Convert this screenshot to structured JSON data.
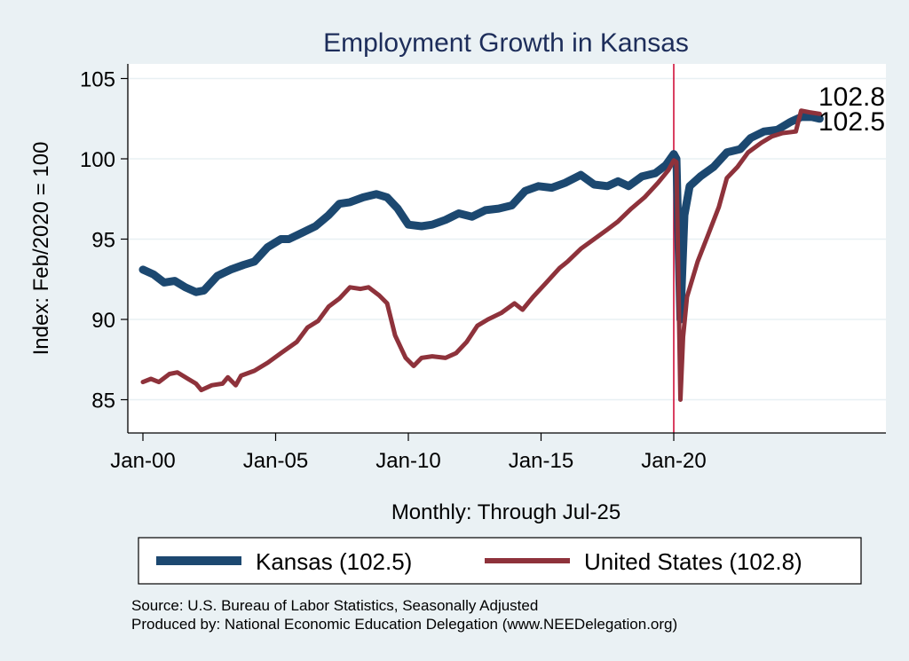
{
  "chart_data": {
    "type": "line",
    "title": "Employment Growth in Kansas",
    "xlabel": "Monthly: Through Jul-25",
    "ylabel": "Index: Feb/2020 = 100",
    "ylim": [
      83,
      106
    ],
    "xlim": [
      1999.5,
      2028.0
    ],
    "y_ticks": [
      85,
      90,
      95,
      100,
      105
    ],
    "x_ticks": [
      {
        "value": 2000,
        "label": "Jan-00"
      },
      {
        "value": 2005,
        "label": "Jan-05"
      },
      {
        "value": 2010,
        "label": "Jan-10"
      },
      {
        "value": 2015,
        "label": "Jan-15"
      },
      {
        "value": 2020,
        "label": "Jan-20"
      }
    ],
    "grid": true,
    "reference_line": {
      "x": 2020.0,
      "color": "#d0103a"
    },
    "legend": {
      "placement": "bottom",
      "entries": [
        "Kansas (102.5)",
        "United States (102.8)"
      ]
    },
    "series": [
      {
        "name": "Kansas",
        "color": "#1c4870",
        "end_label": "102.5",
        "x": [
          2000.0,
          2000.4,
          2000.8,
          2001.2,
          2001.6,
          2002.0,
          2002.3,
          2002.8,
          2003.3,
          2003.8,
          2004.2,
          2004.7,
          2005.2,
          2005.5,
          2006.0,
          2006.5,
          2007.0,
          2007.4,
          2007.8,
          2008.3,
          2008.8,
          2009.2,
          2009.6,
          2010.0,
          2010.5,
          2010.9,
          2011.4,
          2011.9,
          2012.4,
          2012.9,
          2013.4,
          2013.9,
          2014.4,
          2014.9,
          2015.4,
          2015.9,
          2016.5,
          2017.0,
          2017.5,
          2017.9,
          2018.3,
          2018.8,
          2019.3,
          2019.7,
          2020.0,
          2020.1,
          2020.25,
          2020.4,
          2020.6,
          2021.0,
          2021.5,
          2022.0,
          2022.5,
          2022.9,
          2023.4,
          2023.9,
          2024.4,
          2024.8,
          2025.2,
          2025.5
        ],
        "values": [
          93.1,
          92.8,
          92.3,
          92.4,
          92.0,
          91.7,
          91.8,
          92.7,
          93.1,
          93.4,
          93.6,
          94.5,
          95.0,
          95.0,
          95.4,
          95.8,
          96.5,
          97.2,
          97.3,
          97.6,
          97.8,
          97.6,
          96.9,
          95.9,
          95.8,
          95.9,
          96.2,
          96.6,
          96.4,
          96.8,
          96.9,
          97.1,
          98.0,
          98.3,
          98.2,
          98.5,
          99.0,
          98.4,
          98.3,
          98.6,
          98.3,
          98.9,
          99.1,
          99.6,
          100.3,
          100.0,
          90.0,
          96.5,
          98.3,
          98.9,
          99.5,
          100.4,
          100.6,
          101.3,
          101.7,
          101.8,
          102.3,
          102.6,
          102.6,
          102.5
        ]
      },
      {
        "name": "United States",
        "color": "#8e323b",
        "end_label": "102.8",
        "x": [
          2000.0,
          2000.3,
          2000.6,
          2001.0,
          2001.3,
          2001.7,
          2002.0,
          2002.2,
          2002.6,
          2003.0,
          2003.2,
          2003.5,
          2003.7,
          2004.2,
          2004.7,
          2005.2,
          2005.8,
          2006.2,
          2006.6,
          2007.0,
          2007.4,
          2007.8,
          2008.2,
          2008.5,
          2008.9,
          2009.2,
          2009.5,
          2009.9,
          2010.2,
          2010.5,
          2010.9,
          2011.4,
          2011.8,
          2012.2,
          2012.6,
          2013.0,
          2013.5,
          2014.0,
          2014.3,
          2014.7,
          2015.2,
          2015.7,
          2016.0,
          2016.5,
          2017.0,
          2017.5,
          2017.9,
          2018.4,
          2018.9,
          2019.4,
          2019.8,
          2020.0,
          2020.1,
          2020.25,
          2020.35,
          2020.5,
          2020.9,
          2021.3,
          2021.7,
          2022.0,
          2022.4,
          2022.8,
          2023.3,
          2023.7,
          2024.1,
          2024.6,
          2024.8,
          2025.1,
          2025.5
        ],
        "values": [
          86.1,
          86.3,
          86.1,
          86.6,
          86.7,
          86.3,
          86.0,
          85.6,
          85.9,
          86.0,
          86.4,
          85.9,
          86.5,
          86.8,
          87.3,
          87.9,
          88.6,
          89.5,
          89.9,
          90.8,
          91.3,
          92.0,
          91.9,
          92.0,
          91.5,
          91.0,
          89.0,
          87.6,
          87.1,
          87.6,
          87.7,
          87.6,
          87.9,
          88.6,
          89.6,
          90.0,
          90.4,
          91.0,
          90.6,
          91.4,
          92.3,
          93.2,
          93.6,
          94.4,
          95.0,
          95.6,
          96.1,
          96.9,
          97.6,
          98.5,
          99.3,
          99.9,
          99.8,
          85.0,
          88.9,
          91.4,
          93.6,
          95.3,
          97.0,
          98.8,
          99.5,
          100.4,
          101.0,
          101.4,
          101.6,
          101.7,
          103.0,
          102.9,
          102.8
        ]
      }
    ],
    "notes": [
      "Source: U.S. Bureau of Labor Statistics, Seasonally Adjusted",
      "Produced by: National Economic Education Delegation (www.NEEDelegation.org)"
    ]
  }
}
